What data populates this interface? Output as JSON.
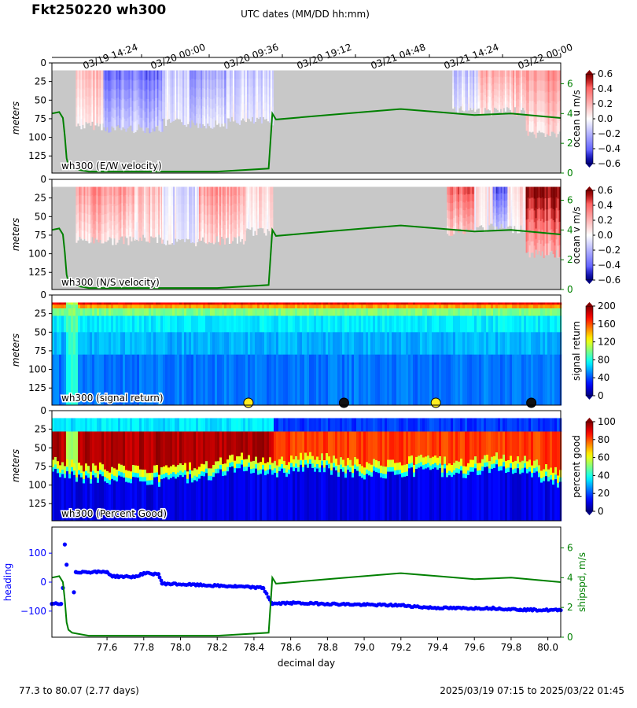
{
  "title": "Fkt250220 wh300",
  "top_axis_label": "UTC dates (MM/DD hh:mm)",
  "top_ticks": [
    "03/19 14:24",
    "03/20 00:00",
    "03/20 09:36",
    "03/20 19:12",
    "03/21 04:48",
    "03/21 14:24",
    "03/22 00:00"
  ],
  "footer": {
    "left": "77.3 to 80.07 (2.77 days)",
    "right": "2025/03/19 07:15 to 2025/03/22 01:45"
  },
  "colors": {
    "shipspeed": "#008000",
    "heading": "#0000ff",
    "no_data": "#c8c8c8"
  },
  "chart_data": [
    {
      "type": "heatmap",
      "panel": "E/W velocity",
      "label": "wh300 (E/W velocity)",
      "ylabel": "meters",
      "colorbar_label": "ocean u m/s",
      "colorbar_ticks": [
        "0.6",
        "0.4",
        "0.2",
        "0.0",
        "−0.2",
        "−0.4",
        "−0.6"
      ],
      "colormap": "bwr",
      "vmin": -0.6,
      "vmax": 0.6,
      "xlim": [
        77.3,
        80.07
      ],
      "ylim": [
        148,
        0
      ],
      "yticks": [
        "0",
        "25",
        "50",
        "75",
        "100",
        "125"
      ],
      "right_axis": {
        "ticks": [
          "0",
          "2",
          "4",
          "6"
        ],
        "ylim": [
          0,
          7.4
        ]
      },
      "segments": [
        {
          "x": [
            77.43,
            77.58
          ],
          "value": 0.18,
          "bottom": 84
        },
        {
          "x": [
            77.58,
            77.9
          ],
          "value": -0.35,
          "bottom": 88
        },
        {
          "x": [
            77.9,
            78.05
          ],
          "value": -0.1,
          "bottom": 80
        },
        {
          "x": [
            78.05,
            78.25
          ],
          "value": -0.25,
          "bottom": 82
        },
        {
          "x": [
            78.25,
            78.5
          ],
          "value": -0.12,
          "bottom": 78
        },
        {
          "x": [
            79.48,
            79.62
          ],
          "value": -0.15,
          "bottom": 62
        },
        {
          "x": [
            79.62,
            79.88
          ],
          "value": 0.22,
          "bottom": 65
        },
        {
          "x": [
            79.88,
            80.07
          ],
          "value": 0.3,
          "bottom": 95
        }
      ]
    },
    {
      "type": "heatmap",
      "panel": "N/S velocity",
      "label": "wh300 (N/S velocity)",
      "ylabel": "meters",
      "colorbar_label": "ocean v m/s",
      "colorbar_ticks": [
        "0.6",
        "0.4",
        "0.2",
        "0.0",
        "−0.2",
        "−0.4",
        "−0.6"
      ],
      "colormap": "bwr",
      "vmin": -0.6,
      "vmax": 0.6,
      "xlim": [
        77.3,
        80.07
      ],
      "ylim": [
        148,
        0
      ],
      "yticks": [
        "0",
        "25",
        "50",
        "75",
        "100",
        "125"
      ],
      "right_axis": {
        "ticks": [
          "0",
          "2",
          "4",
          "6"
        ],
        "ylim": [
          0,
          7.4
        ]
      },
      "segments": [
        {
          "x": [
            77.43,
            77.75
          ],
          "value": 0.28,
          "bottom": 82
        },
        {
          "x": [
            77.75,
            77.9
          ],
          "value": 0.15,
          "bottom": 80
        },
        {
          "x": [
            77.9,
            78.1
          ],
          "value": -0.08,
          "bottom": 84
        },
        {
          "x": [
            78.1,
            78.35
          ],
          "value": 0.26,
          "bottom": 82
        },
        {
          "x": [
            78.35,
            78.5
          ],
          "value": 0.1,
          "bottom": 70
        },
        {
          "x": [
            79.45,
            79.6
          ],
          "value": 0.4,
          "bottom": 70
        },
        {
          "x": [
            79.6,
            79.7
          ],
          "value": 0.05,
          "bottom": 65
        },
        {
          "x": [
            79.7,
            79.78
          ],
          "value": -0.4,
          "bottom": 65
        },
        {
          "x": [
            79.78,
            79.88
          ],
          "value": 0.1,
          "bottom": 66
        },
        {
          "x": [
            79.88,
            80.07
          ],
          "value": 0.6,
          "bottom": 100
        }
      ]
    },
    {
      "type": "heatmap",
      "panel": "signal return",
      "label": "wh300 (signal return)",
      "ylabel": "meters",
      "colorbar_label": "signal return",
      "colorbar_ticks": [
        "200",
        "160",
        "120",
        "80",
        "40",
        "0"
      ],
      "colormap": "jet",
      "vmin": 0,
      "vmax": 200,
      "xlim": [
        77.3,
        80.07
      ],
      "ylim": [
        148,
        0
      ],
      "yticks": [
        "0",
        "25",
        "50",
        "75",
        "100",
        "125"
      ],
      "markers": [
        {
          "x": 78.37,
          "color": "#ffee22"
        },
        {
          "x": 78.89,
          "color": "#111111"
        },
        {
          "x": 79.39,
          "color": "#ffee22"
        },
        {
          "x": 79.91,
          "color": "#111111"
        }
      ]
    },
    {
      "type": "heatmap",
      "panel": "Percent Good",
      "label": "wh300 (Percent Good)",
      "ylabel": "meters",
      "colorbar_label": "percent good",
      "colorbar_ticks": [
        "100",
        "80",
        "60",
        "40",
        "20",
        "0"
      ],
      "colormap": "jet",
      "vmin": 0,
      "vmax": 100,
      "xlim": [
        77.3,
        80.07
      ],
      "ylim": [
        148,
        0
      ],
      "yticks": [
        "0",
        "25",
        "50",
        "75",
        "100",
        "125"
      ],
      "good_depth": [
        {
          "x": 77.3,
          "depth": 76
        },
        {
          "x": 77.44,
          "depth": 85
        },
        {
          "x": 77.7,
          "depth": 88
        },
        {
          "x": 77.9,
          "depth": 90
        },
        {
          "x": 78.1,
          "depth": 85
        },
        {
          "x": 78.3,
          "depth": 72
        },
        {
          "x": 78.5,
          "depth": 80
        },
        {
          "x": 78.7,
          "depth": 70
        },
        {
          "x": 78.9,
          "depth": 78
        },
        {
          "x": 79.1,
          "depth": 82
        },
        {
          "x": 79.3,
          "depth": 75
        },
        {
          "x": 79.5,
          "depth": 80
        },
        {
          "x": 79.7,
          "depth": 72
        },
        {
          "x": 79.9,
          "depth": 78
        },
        {
          "x": 80.07,
          "depth": 95
        }
      ]
    },
    {
      "type": "scatter",
      "panel": "heading / ship speed",
      "xlabel": "decimal day",
      "ylabel": "heading",
      "right_ylabel": "shipspd, m/s",
      "xlim": [
        77.3,
        80.07
      ],
      "ylim": [
        -190,
        190
      ],
      "xticks": [
        "77.6",
        "77.8",
        "78.0",
        "78.2",
        "78.4",
        "78.6",
        "78.8",
        "79.0",
        "79.2",
        "79.4",
        "79.6",
        "79.8",
        "80.0"
      ],
      "yticks": [
        "100",
        "0",
        "−100"
      ],
      "right_axis": {
        "ticks": [
          "0",
          "2",
          "4",
          "6"
        ],
        "ylim": [
          0,
          7.4
        ]
      },
      "heading": [
        {
          "x": 77.3,
          "y": -75
        },
        {
          "x": 77.35,
          "y": -75
        },
        {
          "x": 77.36,
          "y": -20
        },
        {
          "x": 77.37,
          "y": 130
        },
        {
          "x": 77.38,
          "y": 60
        },
        {
          "x": 77.42,
          "y": -35
        },
        {
          "x": 77.43,
          "y": 35
        },
        {
          "x": 77.6,
          "y": 35
        },
        {
          "x": 77.63,
          "y": 20
        },
        {
          "x": 77.75,
          "y": 18
        },
        {
          "x": 77.8,
          "y": 30
        },
        {
          "x": 77.88,
          "y": 28
        },
        {
          "x": 77.9,
          "y": -5
        },
        {
          "x": 78.1,
          "y": -10
        },
        {
          "x": 78.3,
          "y": -15
        },
        {
          "x": 78.45,
          "y": -20
        },
        {
          "x": 78.5,
          "y": -75
        },
        {
          "x": 78.6,
          "y": -72
        },
        {
          "x": 78.8,
          "y": -75
        },
        {
          "x": 79.0,
          "y": -78
        },
        {
          "x": 79.2,
          "y": -80
        },
        {
          "x": 79.35,
          "y": -88
        },
        {
          "x": 79.5,
          "y": -90
        },
        {
          "x": 79.7,
          "y": -90
        },
        {
          "x": 79.85,
          "y": -95
        },
        {
          "x": 80.07,
          "y": -97
        }
      ],
      "ship_speed": [
        {
          "x": 77.3,
          "y": 4.0
        },
        {
          "x": 77.34,
          "y": 4.1
        },
        {
          "x": 77.36,
          "y": 3.7
        },
        {
          "x": 77.37,
          "y": 2.5
        },
        {
          "x": 77.38,
          "y": 1.0
        },
        {
          "x": 77.39,
          "y": 0.5
        },
        {
          "x": 77.41,
          "y": 0.3
        },
        {
          "x": 77.5,
          "y": 0.1
        },
        {
          "x": 78.2,
          "y": 0.1
        },
        {
          "x": 78.48,
          "y": 0.3
        },
        {
          "x": 78.5,
          "y": 4.0
        },
        {
          "x": 78.52,
          "y": 3.6
        },
        {
          "x": 78.8,
          "y": 3.9
        },
        {
          "x": 79.0,
          "y": 4.1
        },
        {
          "x": 79.2,
          "y": 4.3
        },
        {
          "x": 79.4,
          "y": 4.1
        },
        {
          "x": 79.6,
          "y": 3.9
        },
        {
          "x": 79.8,
          "y": 4.0
        },
        {
          "x": 80.07,
          "y": 3.7
        }
      ]
    }
  ]
}
